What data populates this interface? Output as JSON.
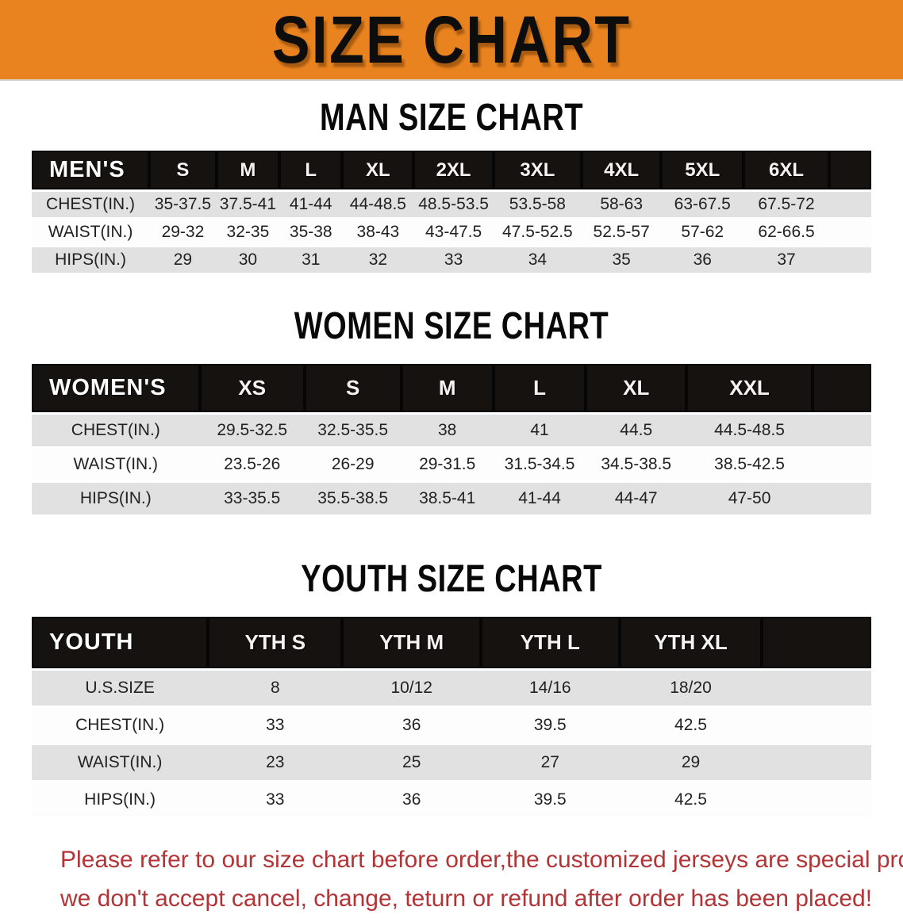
{
  "banner": {
    "title": "SIZE CHART",
    "bg_color": "#E8831F"
  },
  "sections": [
    {
      "heading": "MAN SIZE CHART",
      "header_label": "MEN'S",
      "columns": [
        "S",
        "M",
        "L",
        "XL",
        "2XL",
        "3XL",
        "4XL",
        "5XL",
        "6XL"
      ],
      "rows": [
        {
          "label": "CHEST(IN.)",
          "values": [
            "35-37.5",
            "37.5-41",
            "41-44",
            "44-48.5",
            "48.5-53.5",
            "53.5-58",
            "58-63",
            "63-67.5",
            "67.5-72"
          ]
        },
        {
          "label": "WAIST(IN.)",
          "values": [
            "29-32",
            "32-35",
            "35-38",
            "38-43",
            "43-47.5",
            "47.5-52.5",
            "52.5-57",
            "57-62",
            "62-66.5"
          ]
        },
        {
          "label": "HIPS(IN.)",
          "values": [
            "29",
            "30",
            "31",
            "32",
            "33",
            "34",
            "35",
            "36",
            "37"
          ]
        }
      ]
    },
    {
      "heading": "WOMEN SIZE CHART",
      "header_label": "WOMEN'S",
      "columns": [
        "XS",
        "S",
        "M",
        "L",
        "XL",
        "XXL"
      ],
      "rows": [
        {
          "label": "CHEST(IN.)",
          "values": [
            "29.5-32.5",
            "32.5-35.5",
            "38",
            "41",
            "44.5",
            "44.5-48.5"
          ]
        },
        {
          "label": "WAIST(IN.)",
          "values": [
            "23.5-26",
            "26-29",
            "29-31.5",
            "31.5-34.5",
            "34.5-38.5",
            "38.5-42.5"
          ]
        },
        {
          "label": "HIPS(IN.)",
          "values": [
            "33-35.5",
            "35.5-38.5",
            "38.5-41",
            "41-44",
            "44-47",
            "47-50"
          ]
        }
      ]
    },
    {
      "heading": "YOUTH SIZE CHART",
      "header_label": "YOUTH",
      "columns": [
        "YTH S",
        "YTH M",
        "YTH L",
        "YTH XL"
      ],
      "rows": [
        {
          "label": "U.S.SIZE",
          "values": [
            "8",
            "10/12",
            "14/16",
            "18/20"
          ]
        },
        {
          "label": "CHEST(IN.)",
          "values": [
            "33",
            "36",
            "39.5",
            "42.5"
          ]
        },
        {
          "label": "WAIST(IN.)",
          "values": [
            "23",
            "25",
            "27",
            "29"
          ]
        },
        {
          "label": "HIPS(IN.)",
          "values": [
            "33",
            "36",
            "39.5",
            "42.5"
          ]
        }
      ]
    }
  ],
  "footer": {
    "line1": "Please refer to our size chart before order,the customized jerseys are special products,",
    "line2": "we don't accept cancel, change, teturn or refund after order has been placed!",
    "text_color": "#B23436"
  },
  "colors": {
    "banner_bg": "#E8831F",
    "table_header_bg": "#161210",
    "row_shaded": "#E2E1E1",
    "row_plain": "#FDFDFD"
  }
}
